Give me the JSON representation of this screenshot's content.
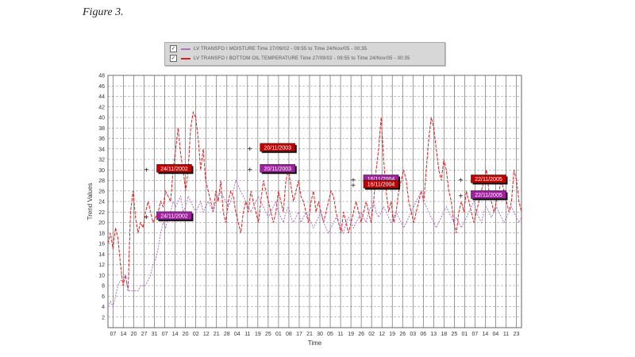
{
  "figure_caption": "Figure 3.",
  "legend": {
    "entries": [
      {
        "checked": "✓",
        "color": "#b070c8",
        "text": "LV TRANSFO I MOISTURE Time 27/09/02 - 09:55 to Time 24/Nov/05 - 00:35"
      },
      {
        "checked": "✓",
        "color": "#e02020",
        "text": "LV TRANSFO I BOTTOM OIL TEMPERATURE Time 27/09/02 - 09:55 to Time 24/Nov/05 - 00:35"
      }
    ]
  },
  "chart_data": {
    "type": "line",
    "title": "",
    "xlabel": "Time",
    "ylabel": "Trend Values",
    "ylim": [
      0,
      48
    ],
    "yticks": [
      2,
      4,
      6,
      8,
      10,
      12,
      14,
      16,
      18,
      20,
      22,
      24,
      26,
      28,
      30,
      32,
      34,
      36,
      38,
      40,
      42,
      44,
      46,
      48
    ],
    "xtick_labels": [
      "07",
      "14",
      "20",
      "27",
      "31",
      "07",
      "14",
      "20",
      "02",
      "12",
      "21",
      "28",
      "04",
      "11",
      "19",
      "25",
      "01",
      "08",
      "17",
      "21",
      "30",
      "05",
      "11",
      "19",
      "26",
      "02",
      "12",
      "19",
      "26",
      "03",
      "06",
      "13",
      "18",
      "25",
      "01",
      "07",
      "14",
      "04",
      "11",
      "23"
    ],
    "grid": true,
    "series": [
      {
        "name": "LV TRANSFO I BOTTOM OIL TEMPERATURE",
        "color": "#e02020",
        "values": [
          16,
          18,
          15,
          19,
          17,
          12,
          8,
          10,
          7,
          22,
          26,
          21,
          18,
          20,
          19,
          22,
          24,
          22,
          20,
          21,
          22,
          24,
          23,
          26,
          25,
          24,
          30,
          34,
          38,
          33,
          30,
          26,
          30,
          38,
          41,
          40,
          36,
          30,
          34,
          28,
          26,
          24,
          22,
          26,
          24,
          28,
          22,
          20,
          24,
          26,
          25,
          22,
          20,
          18,
          22,
          24,
          22,
          26,
          24,
          22,
          20,
          24,
          28,
          26,
          24,
          22,
          20,
          22,
          26,
          24,
          22,
          28,
          30,
          27,
          24,
          26,
          28,
          25,
          24,
          22,
          20,
          24,
          26,
          22,
          24,
          22,
          20,
          22,
          24,
          26,
          25,
          22,
          20,
          18,
          22,
          20,
          18,
          20,
          22,
          24,
          22,
          20,
          22,
          24,
          22,
          20,
          24,
          30,
          34,
          40,
          32,
          26,
          22,
          24,
          20,
          22,
          26,
          28,
          30,
          28,
          24,
          22,
          20,
          22,
          24,
          26,
          24,
          30,
          36,
          40,
          38,
          34,
          30,
          28,
          32,
          30,
          26,
          24,
          20,
          18,
          22,
          24,
          22,
          26,
          24,
          22,
          20,
          22,
          24,
          26,
          28,
          30,
          26,
          24,
          22,
          24,
          26,
          28,
          26,
          24,
          22,
          24,
          30,
          28,
          24,
          22
        ]
      },
      {
        "name": "LV TRANSFO I MOISTURE",
        "color": "#b070c8",
        "values": [
          4,
          5,
          4,
          6,
          8,
          9,
          9,
          10,
          7,
          7,
          7,
          7,
          7,
          8,
          8,
          8,
          9,
          10,
          12,
          13,
          15,
          18,
          20,
          19,
          21,
          22,
          24,
          23,
          24,
          25,
          22,
          23,
          25,
          24,
          23,
          22,
          23,
          24,
          22,
          23,
          24,
          23,
          22,
          24,
          25,
          26,
          25,
          24,
          23,
          24,
          26,
          28,
          27,
          26,
          25,
          24,
          23,
          22,
          23,
          24,
          25,
          24,
          23,
          22,
          21,
          22,
          23,
          24,
          22,
          21,
          20,
          22,
          23,
          21,
          20,
          21,
          22,
          20,
          21,
          22,
          21,
          20,
          19,
          20,
          21,
          22,
          20,
          19,
          18,
          19,
          20,
          21,
          20,
          19,
          18,
          20,
          21,
          20,
          19,
          20,
          21,
          22,
          21,
          20,
          22,
          23,
          24,
          22,
          21,
          22,
          23,
          22,
          21,
          20,
          21,
          22,
          21,
          20,
          19,
          20,
          21,
          22,
          23,
          24,
          25,
          26,
          24,
          23,
          22,
          21,
          20,
          19,
          20,
          21,
          22,
          23,
          22,
          21,
          20,
          21,
          20,
          19,
          20,
          21,
          22,
          23,
          24,
          22,
          21,
          20,
          22,
          23,
          22,
          21,
          22,
          23,
          22,
          21,
          20,
          21,
          22,
          23,
          22,
          21,
          20,
          21
        ]
      }
    ],
    "annotations": [
      {
        "label": "24/11/2002",
        "color": "#c00000",
        "y": 30,
        "x_frac": 0.12
      },
      {
        "label": "24/11/2002",
        "color": "#a020a0",
        "y": 21,
        "x_frac": 0.12
      },
      {
        "label": "20/11/2003",
        "color": "#c00000",
        "y": 34,
        "x_frac": 0.37
      },
      {
        "label": "20/11/2003",
        "color": "#a020a0",
        "y": 30,
        "x_frac": 0.37
      },
      {
        "label": "16/11/2004",
        "color": "#a020a0",
        "y": 28,
        "x_frac": 0.62
      },
      {
        "label": "16/11/2004",
        "color": "#c00000",
        "y": 27,
        "x_frac": 0.62
      },
      {
        "label": "22/11/2005",
        "color": "#c00000",
        "y": 28,
        "x_frac": 0.88
      },
      {
        "label": "22/11/2005",
        "color": "#a020a0",
        "y": 25,
        "x_frac": 0.88
      }
    ]
  }
}
